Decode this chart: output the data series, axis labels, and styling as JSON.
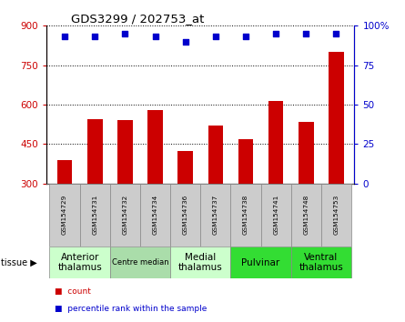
{
  "title": "GDS3299 / 202753_at",
  "samples": [
    "GSM154729",
    "GSM154731",
    "GSM154732",
    "GSM154734",
    "GSM154736",
    "GSM154737",
    "GSM154738",
    "GSM154741",
    "GSM154748",
    "GSM154753"
  ],
  "counts": [
    390,
    545,
    543,
    578,
    425,
    520,
    468,
    615,
    535,
    800
  ],
  "percentile_ranks": [
    93,
    93,
    95,
    93,
    90,
    93,
    93,
    95,
    95,
    95
  ],
  "ylim_left": [
    300,
    900
  ],
  "ylim_right": [
    0,
    100
  ],
  "yticks_left": [
    300,
    450,
    600,
    750,
    900
  ],
  "yticks_right": [
    0,
    25,
    50,
    75,
    100
  ],
  "bar_color": "#cc0000",
  "dot_color": "#0000cc",
  "grid_color": "#000000",
  "bg_color": "#ffffff",
  "tissue_groups": [
    {
      "label": "Anterior\nthalamus",
      "start": 0,
      "end": 2,
      "color": "#ccffcc",
      "fontsize": 7.5,
      "small": false
    },
    {
      "label": "Centre median",
      "start": 2,
      "end": 4,
      "color": "#aaddaa",
      "fontsize": 6.0,
      "small": true
    },
    {
      "label": "Medial\nthalamus",
      "start": 4,
      "end": 6,
      "color": "#ccffcc",
      "fontsize": 7.5,
      "small": false
    },
    {
      "label": "Pulvinar",
      "start": 6,
      "end": 8,
      "color": "#33dd33",
      "fontsize": 7.5,
      "small": false
    },
    {
      "label": "Ventral\nthalamus",
      "start": 8,
      "end": 10,
      "color": "#33dd33",
      "fontsize": 7.5,
      "small": false
    }
  ],
  "xlabel_color_left": "#cc0000",
  "xlabel_color_right": "#0000cc",
  "sample_label_bg": "#cccccc",
  "legend_items": [
    {
      "color": "#cc0000",
      "label": "count"
    },
    {
      "color": "#0000cc",
      "label": "percentile rank within the sample"
    }
  ]
}
